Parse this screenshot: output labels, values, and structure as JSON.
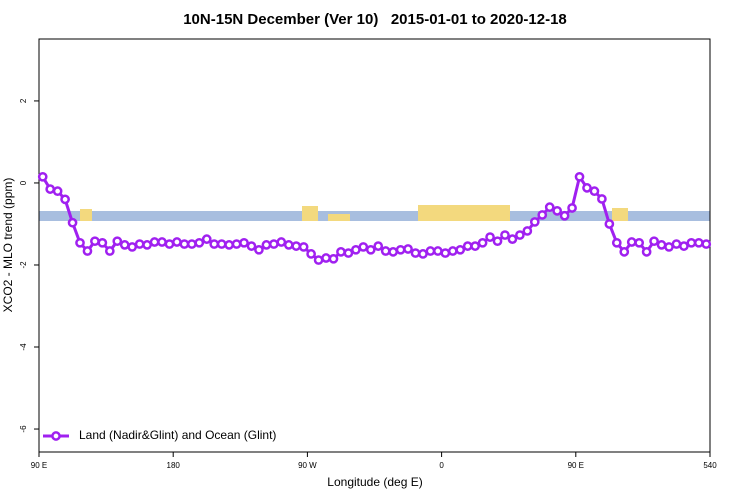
{
  "chart_data": {
    "type": "line",
    "title": "10N-15N December (Ver 10)   2015-01-01 to 2020-12-18",
    "x_label": "Longitude (deg E)",
    "y_label": "XCO2 - MLO trend (ppm)",
    "x": [
      92.5,
      97.5,
      102.5,
      107.5,
      112.5,
      117.5,
      122.5,
      127.5,
      132.5,
      137.5,
      142.5,
      147.5,
      152.5,
      157.5,
      162.5,
      167.5,
      172.5,
      177.5,
      182.5,
      187.5,
      192.5,
      197.5,
      202.5,
      207.5,
      212.5,
      217.5,
      222.5,
      227.5,
      232.5,
      237.5,
      242.5,
      247.5,
      252.5,
      257.5,
      262.5,
      267.5,
      272.5,
      277.5,
      282.5,
      287.5,
      292.5,
      297.5,
      302.5,
      307.5,
      312.5,
      317.5,
      322.5,
      327.5,
      332.5,
      337.5,
      342.5,
      347.5,
      352.5,
      357.5,
      362.5,
      367.5,
      372.5,
      377.5,
      382.5,
      387.5,
      392.5,
      397.5,
      402.5,
      407.5,
      412.5,
      417.5,
      422.5,
      427.5,
      432.5,
      437.5,
      442.5,
      447.5,
      452.5,
      457.5,
      462.5,
      467.5,
      472.5,
      477.5,
      482.5,
      487.5,
      492.5,
      497.5,
      502.5,
      507.5,
      512.5,
      517.5,
      522.5,
      527.5,
      532.5,
      537.5
    ],
    "series": [
      {
        "name": "Land (Nadir&Glint) and Ocean (Glint)",
        "color": "#a020f0",
        "values": [
          0.15,
          -0.15,
          -0.2,
          -0.4,
          -0.97,
          -1.46,
          -1.66,
          -1.42,
          -1.46,
          -1.66,
          -1.42,
          -1.51,
          -1.56,
          -1.49,
          -1.51,
          -1.44,
          -1.44,
          -1.49,
          -1.44,
          -1.49,
          -1.49,
          -1.46,
          -1.37,
          -1.49,
          -1.49,
          -1.51,
          -1.49,
          -1.46,
          -1.54,
          -1.63,
          -1.51,
          -1.49,
          -1.44,
          -1.51,
          -1.54,
          -1.56,
          -1.73,
          -1.88,
          -1.83,
          -1.85,
          -1.68,
          -1.71,
          -1.63,
          -1.56,
          -1.63,
          -1.54,
          -1.66,
          -1.68,
          -1.63,
          -1.61,
          -1.71,
          -1.73,
          -1.66,
          -1.66,
          -1.71,
          -1.66,
          -1.63,
          -1.54,
          -1.54,
          -1.46,
          -1.32,
          -1.42,
          -1.27,
          -1.37,
          -1.27,
          -1.17,
          -0.95,
          -0.78,
          -0.59,
          -0.68,
          -0.8,
          -0.61,
          0.15,
          -0.12,
          -0.2,
          -0.39,
          -1.0,
          -1.46,
          -1.68,
          -1.44,
          -1.46,
          -1.68,
          -1.42,
          -1.51,
          -1.56,
          -1.49,
          -1.54,
          -1.46,
          -1.46,
          -1.49
        ]
      }
    ],
    "xlim": [
      90,
      540
    ],
    "xticks": [
      {
        "value": 90,
        "label": "90 E"
      },
      180,
      {
        "value": 270,
        "label": "90 W"
      },
      {
        "value": 360,
        "label": "0"
      },
      {
        "value": 450,
        "label": "90 E"
      },
      540
    ],
    "ylim": [
      -6.56,
      3.51
    ],
    "yticks": [
      2,
      0,
      -2,
      -4,
      -6
    ],
    "legend": "lower left"
  }
}
